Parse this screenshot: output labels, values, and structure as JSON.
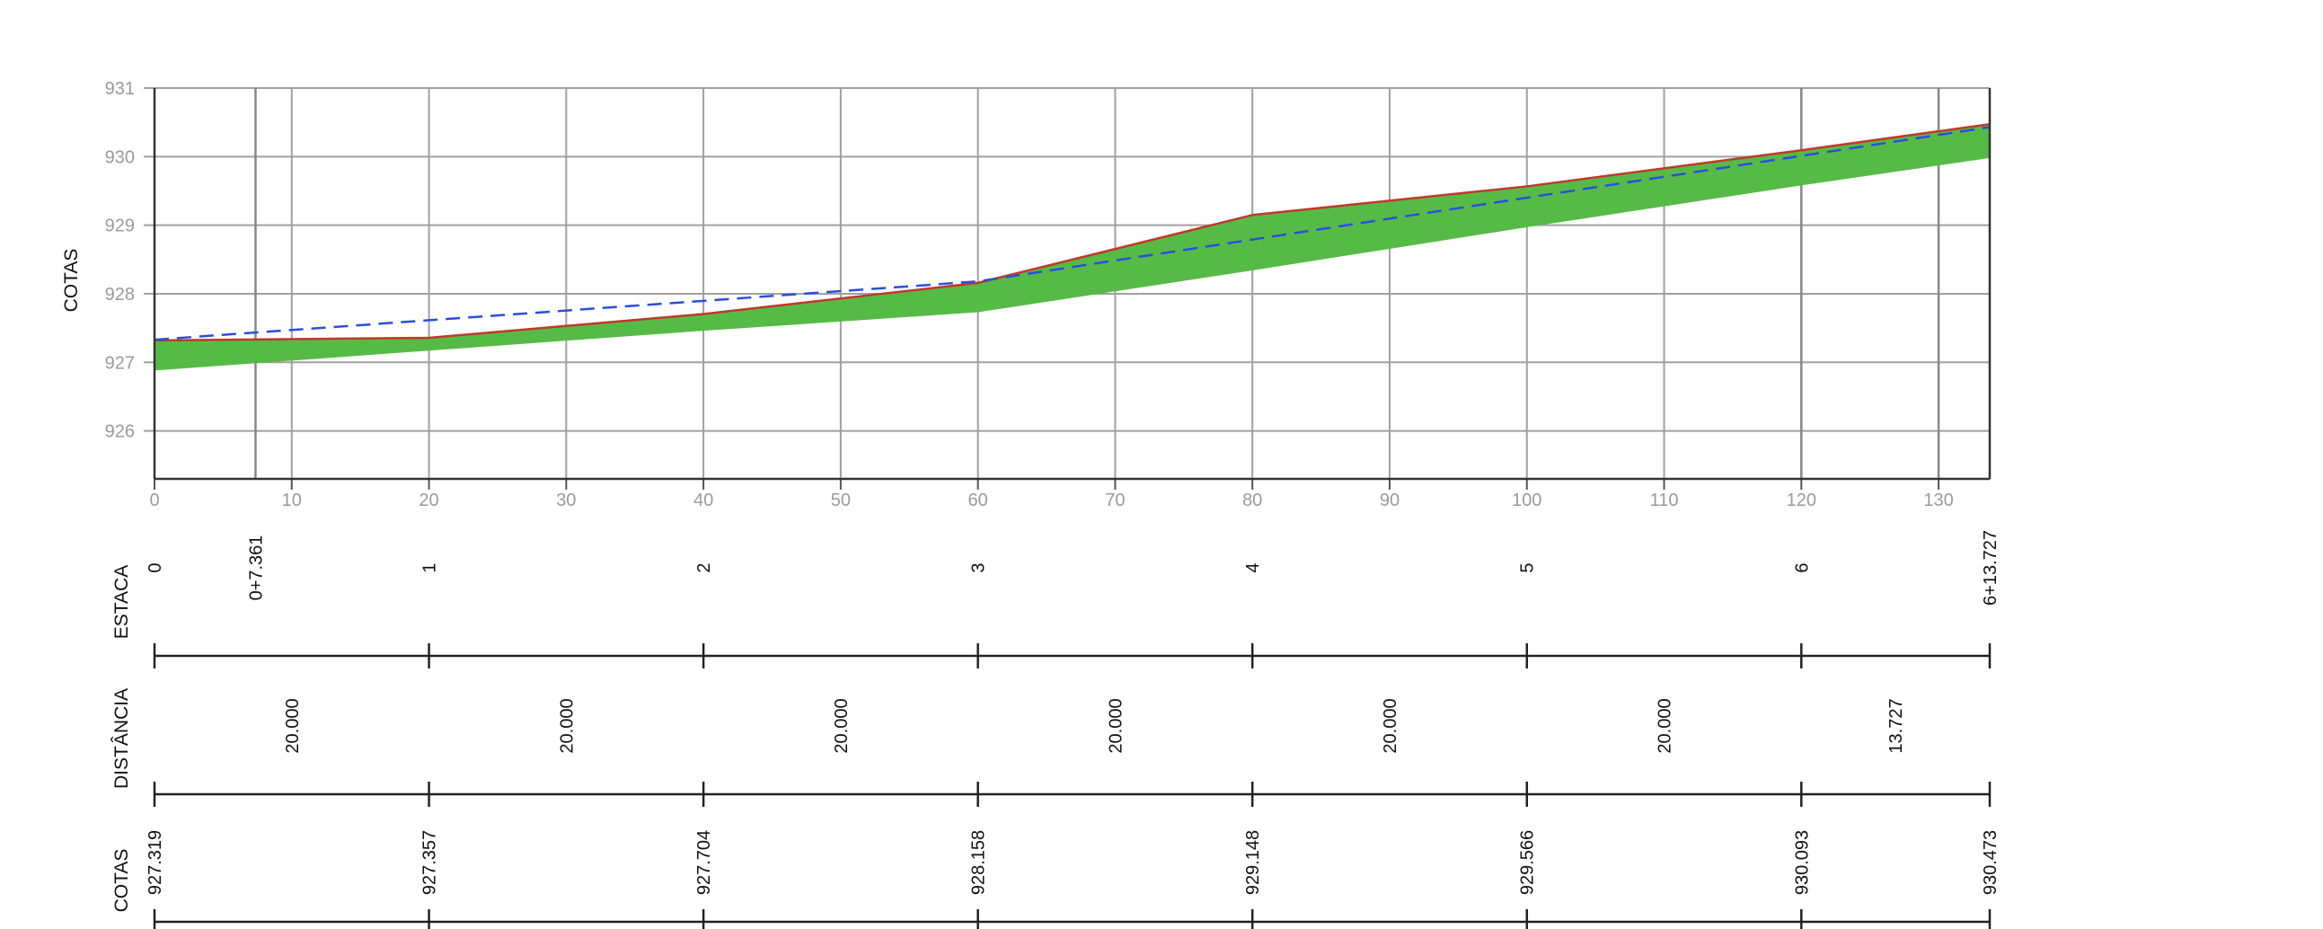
{
  "chart_data": {
    "type": "area",
    "ylabel": "COTAS",
    "xlim": [
      0,
      133.727
    ],
    "ylim": [
      925.3,
      931
    ],
    "x_ticks": [
      0,
      10,
      20,
      30,
      40,
      50,
      60,
      70,
      80,
      90,
      100,
      110,
      120,
      130
    ],
    "y_ticks": [
      926,
      927,
      928,
      929,
      930,
      931
    ],
    "grid": true,
    "colors": {
      "fill": "#56bb46",
      "terrain": "#c0392b",
      "design": "#2a4de0",
      "grid": "#a0a0a0"
    },
    "series": [
      {
        "x": [
          0,
          20,
          40,
          60,
          80,
          100,
          120,
          133.727
        ],
        "values": [
          927.319,
          927.357,
          927.704,
          928.158,
          929.148,
          929.566,
          930.093,
          930.473
        ]
      },
      {
        "x": [
          0,
          60,
          133.727
        ],
        "values": [
          927.33,
          928.18,
          930.43
        ]
      },
      {
        "x": [
          0,
          20,
          40,
          60,
          80,
          100,
          120,
          133.727
        ],
        "values": [
          926.88,
          927.17,
          927.46,
          927.73,
          928.34,
          928.97,
          929.58,
          929.98
        ]
      }
    ],
    "vertical_markers": [
      7.361,
      120,
      130
    ],
    "table": {
      "estaca": {
        "title": "ESTACA",
        "items": [
          {
            "x": 0,
            "label": "0"
          },
          {
            "x": 7.361,
            "label": "0+7.361"
          },
          {
            "x": 20,
            "label": "1"
          },
          {
            "x": 40,
            "label": "2"
          },
          {
            "x": 60,
            "label": "3"
          },
          {
            "x": 80,
            "label": "4"
          },
          {
            "x": 100,
            "label": "5"
          },
          {
            "x": 120,
            "label": "6"
          },
          {
            "x": 133.727,
            "label": "6+13.727"
          }
        ]
      },
      "distancia": {
        "title": "DISTÂNCIA",
        "items": [
          {
            "x": 10,
            "label": "20.000"
          },
          {
            "x": 30,
            "label": "20.000"
          },
          {
            "x": 50,
            "label": "20.000"
          },
          {
            "x": 70,
            "label": "20.000"
          },
          {
            "x": 90,
            "label": "20.000"
          },
          {
            "x": 110,
            "label": "20.000"
          },
          {
            "x": 126.8635,
            "label": "13.727"
          }
        ]
      },
      "cotas": {
        "title": "COTAS",
        "items": [
          {
            "x": 0,
            "label": "927.319"
          },
          {
            "x": 20,
            "label": "927.357"
          },
          {
            "x": 40,
            "label": "927.704"
          },
          {
            "x": 60,
            "label": "928.158"
          },
          {
            "x": 80,
            "label": "929.148"
          },
          {
            "x": 100,
            "label": "929.566"
          },
          {
            "x": 120,
            "label": "930.093"
          },
          {
            "x": 133.727,
            "label": "930.473"
          }
        ]
      },
      "tick_stations": [
        0,
        20,
        40,
        60,
        80,
        100,
        120,
        133.727
      ]
    }
  }
}
